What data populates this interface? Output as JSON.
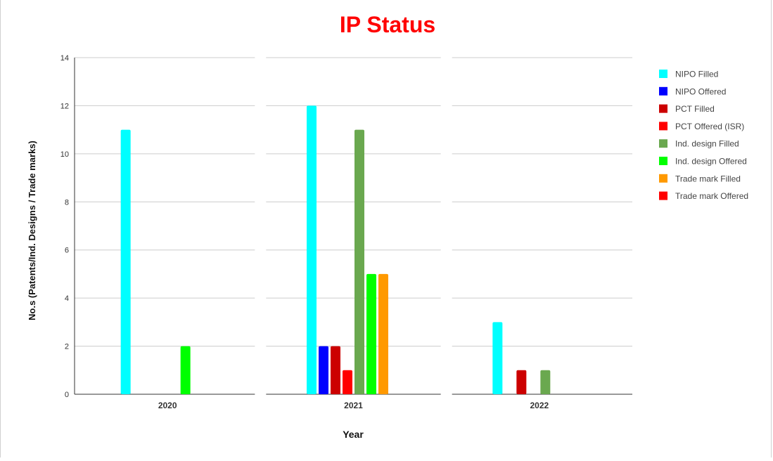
{
  "chart_data": {
    "type": "bar",
    "title": "IP Status",
    "title_color": "#ff0000",
    "xlabel": "Year",
    "ylabel": "No.s (Patents/Ind. Designs / Trade marks)",
    "categories": [
      "2020",
      "2021",
      "2022"
    ],
    "ylim": [
      0,
      14
    ],
    "yticks": [
      "0",
      "2",
      "4",
      "6",
      "8",
      "10",
      "12",
      "14"
    ],
    "grid": true,
    "legend_position": "right",
    "series": [
      {
        "name": "NIPO Filled",
        "color": "#00ffff",
        "values": [
          11,
          12,
          3
        ]
      },
      {
        "name": "NIPO Offered",
        "color": "#0000ff",
        "values": [
          0,
          2,
          0
        ]
      },
      {
        "name": "PCT Filled",
        "color": "#cc0000",
        "values": [
          0,
          2,
          1
        ]
      },
      {
        "name": "PCT Offered (ISR)",
        "color": "#ff0000",
        "values": [
          0,
          1,
          0
        ]
      },
      {
        "name": "Ind. design Filled",
        "color": "#6aa84f",
        "values": [
          0,
          11,
          1
        ]
      },
      {
        "name": "Ind. design Offered",
        "color": "#00ff00",
        "values": [
          2,
          5,
          0
        ]
      },
      {
        "name": "Trade mark Filled",
        "color": "#ff9900",
        "values": [
          0,
          5,
          0
        ]
      },
      {
        "name": "Trade mark Offered",
        "color": "#ff0000",
        "values": [
          0,
          0,
          0
        ]
      }
    ]
  }
}
